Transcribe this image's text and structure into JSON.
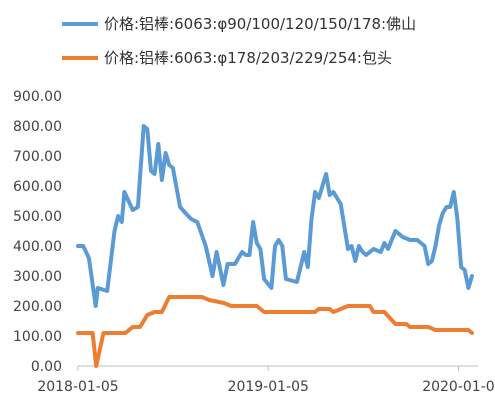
{
  "chart_data": {
    "type": "line",
    "title": "",
    "xlabel": "",
    "ylabel": "",
    "ylim": [
      0,
      900
    ],
    "y_ticks": [
      "0.00",
      "100.00",
      "200.00",
      "300.00",
      "400.00",
      "500.00",
      "600.00",
      "700.00",
      "800.00",
      "900.00"
    ],
    "x_ticks": [
      "2018-01-05",
      "2019-01-05",
      "2020-01-0"
    ],
    "x_range": [
      "2018-01-05",
      "2020-01-31"
    ],
    "grid": false,
    "legend_position": "top",
    "series": [
      {
        "name": "价格:铝棒:6063:φ90/100/120/150/178:佛山",
        "color": "#5B9BD5",
        "points": [
          [
            "2018-01-05",
            400
          ],
          [
            "2018-01-15",
            400
          ],
          [
            "2018-01-26",
            360
          ],
          [
            "2018-02-08",
            200
          ],
          [
            "2018-02-12",
            260
          ],
          [
            "2018-03-02",
            250
          ],
          [
            "2018-03-16",
            450
          ],
          [
            "2018-03-23",
            500
          ],
          [
            "2018-03-30",
            480
          ],
          [
            "2018-04-04",
            580
          ],
          [
            "2018-04-20",
            520
          ],
          [
            "2018-04-30",
            530
          ],
          [
            "2018-05-11",
            800
          ],
          [
            "2018-05-18",
            790
          ],
          [
            "2018-05-25",
            650
          ],
          [
            "2018-06-01",
            640
          ],
          [
            "2018-06-08",
            740
          ],
          [
            "2018-06-15",
            620
          ],
          [
            "2018-06-22",
            710
          ],
          [
            "2018-06-29",
            670
          ],
          [
            "2018-07-06",
            660
          ],
          [
            "2018-07-20",
            530
          ],
          [
            "2018-07-30",
            510
          ],
          [
            "2018-08-10",
            490
          ],
          [
            "2018-08-22",
            480
          ],
          [
            "2018-09-07",
            400
          ],
          [
            "2018-09-20",
            300
          ],
          [
            "2018-09-28",
            380
          ],
          [
            "2018-10-11",
            270
          ],
          [
            "2018-10-19",
            340
          ],
          [
            "2018-11-02",
            340
          ],
          [
            "2018-11-09",
            360
          ],
          [
            "2018-11-16",
            380
          ],
          [
            "2018-11-23",
            370
          ],
          [
            "2018-11-30",
            370
          ],
          [
            "2018-12-07",
            480
          ],
          [
            "2018-12-14",
            410
          ],
          [
            "2018-12-21",
            390
          ],
          [
            "2018-12-28",
            290
          ],
          [
            "2019-01-11",
            260
          ],
          [
            "2019-01-18",
            400
          ],
          [
            "2019-01-25",
            420
          ],
          [
            "2019-02-01",
            400
          ],
          [
            "2019-02-08",
            290
          ],
          [
            "2019-03-01",
            280
          ],
          [
            "2019-03-15",
            380
          ],
          [
            "2019-03-22",
            330
          ],
          [
            "2019-03-29",
            490
          ],
          [
            "2019-04-05",
            580
          ],
          [
            "2019-04-12",
            560
          ],
          [
            "2019-04-26",
            640
          ],
          [
            "2019-05-03",
            570
          ],
          [
            "2019-05-10",
            580
          ],
          [
            "2019-05-24",
            540
          ],
          [
            "2019-06-07",
            390
          ],
          [
            "2019-06-14",
            400
          ],
          [
            "2019-06-21",
            350
          ],
          [
            "2019-06-28",
            400
          ],
          [
            "2019-07-05",
            380
          ],
          [
            "2019-07-12",
            370
          ],
          [
            "2019-07-26",
            390
          ],
          [
            "2019-08-09",
            380
          ],
          [
            "2019-08-16",
            410
          ],
          [
            "2019-08-23",
            390
          ],
          [
            "2019-08-30",
            420
          ],
          [
            "2019-09-06",
            450
          ],
          [
            "2019-09-20",
            430
          ],
          [
            "2019-10-04",
            420
          ],
          [
            "2019-10-18",
            420
          ],
          [
            "2019-10-25",
            410
          ],
          [
            "2019-11-01",
            400
          ],
          [
            "2019-11-08",
            340
          ],
          [
            "2019-11-15",
            350
          ],
          [
            "2019-11-22",
            400
          ],
          [
            "2019-11-29",
            470
          ],
          [
            "2019-12-06",
            510
          ],
          [
            "2019-12-13",
            530
          ],
          [
            "2019-12-20",
            530
          ],
          [
            "2019-12-27",
            580
          ],
          [
            "2020-01-03",
            490
          ],
          [
            "2020-01-10",
            330
          ],
          [
            "2020-01-17",
            320
          ],
          [
            "2020-01-24",
            260
          ],
          [
            "2020-01-31",
            300
          ]
        ]
      },
      {
        "name": "价格:铝棒:6063:φ178/203/229/254:包头",
        "color": "#ED7D31",
        "points": [
          [
            "2018-01-05",
            110
          ],
          [
            "2018-02-02",
            110
          ],
          [
            "2018-02-09",
            0
          ],
          [
            "2018-02-23",
            110
          ],
          [
            "2018-03-09",
            110
          ],
          [
            "2018-04-06",
            110
          ],
          [
            "2018-04-20",
            130
          ],
          [
            "2018-05-04",
            130
          ],
          [
            "2018-05-18",
            170
          ],
          [
            "2018-06-01",
            180
          ],
          [
            "2018-06-15",
            180
          ],
          [
            "2018-06-29",
            230
          ],
          [
            "2018-08-10",
            230
          ],
          [
            "2018-08-31",
            230
          ],
          [
            "2018-09-14",
            220
          ],
          [
            "2018-10-12",
            210
          ],
          [
            "2018-10-26",
            200
          ],
          [
            "2018-12-14",
            200
          ],
          [
            "2018-12-28",
            180
          ],
          [
            "2019-02-01",
            180
          ],
          [
            "2019-04-05",
            180
          ],
          [
            "2019-04-12",
            190
          ],
          [
            "2019-05-03",
            190
          ],
          [
            "2019-05-10",
            180
          ],
          [
            "2019-06-07",
            200
          ],
          [
            "2019-07-19",
            200
          ],
          [
            "2019-07-26",
            180
          ],
          [
            "2019-08-16",
            180
          ],
          [
            "2019-09-06",
            140
          ],
          [
            "2019-09-27",
            140
          ],
          [
            "2019-10-04",
            130
          ],
          [
            "2019-11-08",
            130
          ],
          [
            "2019-11-22",
            120
          ],
          [
            "2020-01-10",
            120
          ],
          [
            "2020-01-24",
            120
          ],
          [
            "2020-01-31",
            110
          ]
        ]
      }
    ]
  },
  "style": {
    "axis_color": "#BFBFBF",
    "text_color": "#444444"
  }
}
